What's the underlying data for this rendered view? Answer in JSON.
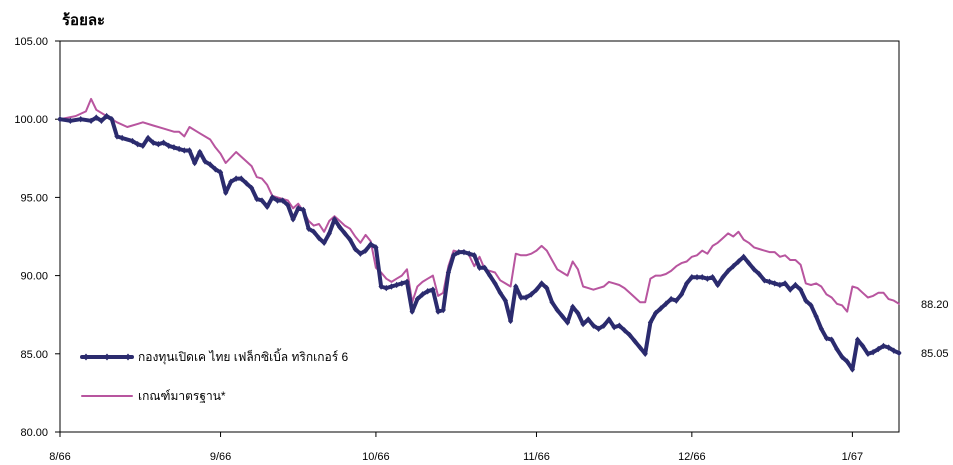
{
  "unit_label": "ร้อยละ",
  "chart_data": {
    "type": "line",
    "title": "",
    "xlabel": "",
    "ylabel": "ร้อยละ",
    "ylim": [
      80,
      105
    ],
    "yticks": [
      "105.00",
      "100.00",
      "95.00",
      "90.00",
      "85.00",
      "80.00"
    ],
    "ytick_values": [
      105,
      100,
      95,
      90,
      85,
      80
    ],
    "xticks": [
      "8/66",
      "9/66",
      "10/66",
      "11/66",
      "12/66",
      "1/67"
    ],
    "xtick_values": [
      0,
      31,
      61,
      92,
      122,
      153
    ],
    "x_range": [
      0,
      162
    ],
    "legend_position": "bottom-left",
    "series": [
      {
        "name": "กองทุนเปิดเค ไทย เฟล็กซิเบิ้ล ทริกเกอร์ 6",
        "color": "#2b2b6e",
        "end_label": "85.05",
        "points": [
          [
            0,
            100
          ],
          [
            2,
            99.9
          ],
          [
            4,
            100
          ],
          [
            6,
            99.9
          ],
          [
            7,
            100.1
          ],
          [
            8,
            99.9
          ],
          [
            9,
            100.2
          ],
          [
            10,
            100
          ],
          [
            11,
            98.9
          ],
          [
            12,
            98.8
          ],
          [
            14,
            98.6
          ],
          [
            15,
            98.4
          ],
          [
            16,
            98.3
          ],
          [
            17,
            98.8
          ],
          [
            18,
            98.5
          ],
          [
            19,
            98.4
          ],
          [
            20,
            98.5
          ],
          [
            21,
            98.3
          ],
          [
            22,
            98.2
          ],
          [
            23,
            98.1
          ],
          [
            24,
            98
          ],
          [
            25,
            98
          ],
          [
            26,
            97.2
          ],
          [
            27,
            97.9
          ],
          [
            28,
            97.3
          ],
          [
            29,
            97.1
          ],
          [
            30,
            96.8
          ],
          [
            31,
            96.6
          ],
          [
            32,
            95.3
          ],
          [
            33,
            96
          ],
          [
            34,
            96.2
          ],
          [
            35,
            96.2
          ],
          [
            36,
            95.9
          ],
          [
            37,
            95.6
          ],
          [
            38,
            94.9
          ],
          [
            39,
            94.8
          ],
          [
            40,
            94.4
          ],
          [
            41,
            95
          ],
          [
            42,
            94.8
          ],
          [
            43,
            94.8
          ],
          [
            44,
            94.5
          ],
          [
            45,
            93.6
          ],
          [
            46,
            94.3
          ],
          [
            47,
            94.2
          ],
          [
            48,
            93
          ],
          [
            49,
            92.8
          ],
          [
            50,
            92.4
          ],
          [
            51,
            92.1
          ],
          [
            52,
            92.7
          ],
          [
            53,
            93.6
          ],
          [
            54,
            93.1
          ],
          [
            55,
            92.7
          ],
          [
            56,
            92.3
          ],
          [
            57,
            91.7
          ],
          [
            58,
            91.4
          ],
          [
            59,
            91.6
          ],
          [
            60,
            92
          ],
          [
            61,
            91.8
          ],
          [
            62,
            89.3
          ],
          [
            63,
            89.2
          ],
          [
            64,
            89.3
          ],
          [
            65,
            89.4
          ],
          [
            66,
            89.5
          ],
          [
            67,
            89.6
          ],
          [
            68,
            87.7
          ],
          [
            69,
            88.5
          ],
          [
            70,
            88.8
          ],
          [
            71,
            89
          ],
          [
            72,
            89.1
          ],
          [
            73,
            87.7
          ],
          [
            74,
            87.8
          ],
          [
            75,
            90.2
          ],
          [
            76,
            91.3
          ],
          [
            77,
            91.5
          ],
          [
            78,
            91.5
          ],
          [
            79,
            91.4
          ],
          [
            80,
            91.3
          ],
          [
            81,
            90.5
          ],
          [
            82,
            90.5
          ],
          [
            83,
            90
          ],
          [
            84,
            89.5
          ],
          [
            85,
            88.9
          ],
          [
            86,
            88.4
          ],
          [
            87,
            87.1
          ],
          [
            88,
            89.3
          ],
          [
            89,
            88.6
          ],
          [
            90,
            88.6
          ],
          [
            91,
            88.8
          ],
          [
            92,
            89.1
          ],
          [
            93,
            89.5
          ],
          [
            94,
            89.2
          ],
          [
            95,
            88.3
          ],
          [
            96,
            87.8
          ],
          [
            97,
            87.4
          ],
          [
            98,
            87
          ],
          [
            99,
            88
          ],
          [
            100,
            87.6
          ],
          [
            101,
            86.9
          ],
          [
            102,
            87.2
          ],
          [
            103,
            86.8
          ],
          [
            104,
            86.6
          ],
          [
            105,
            86.8
          ],
          [
            106,
            87.2
          ],
          [
            107,
            86.7
          ],
          [
            108,
            86.8
          ],
          [
            109,
            86.5
          ],
          [
            110,
            86.2
          ],
          [
            111,
            85.8
          ],
          [
            112,
            85.4
          ],
          [
            113,
            85
          ],
          [
            114,
            87
          ],
          [
            115,
            87.6
          ],
          [
            116,
            87.9
          ],
          [
            117,
            88.2
          ],
          [
            118,
            88.5
          ],
          [
            119,
            88.4
          ],
          [
            120,
            88.8
          ],
          [
            121,
            89.5
          ],
          [
            122,
            89.9
          ],
          [
            123,
            89.9
          ],
          [
            124,
            89.9
          ],
          [
            125,
            89.8
          ],
          [
            126,
            89.9
          ],
          [
            127,
            89.4
          ],
          [
            128,
            89.9
          ],
          [
            129,
            90.3
          ],
          [
            130,
            90.6
          ],
          [
            131,
            90.9
          ],
          [
            132,
            91.2
          ],
          [
            133,
            90.8
          ],
          [
            134,
            90.4
          ],
          [
            135,
            90.1
          ],
          [
            136,
            89.7
          ],
          [
            137,
            89.6
          ],
          [
            138,
            89.5
          ],
          [
            139,
            89.4
          ],
          [
            140,
            89.5
          ],
          [
            141,
            89.1
          ],
          [
            142,
            89.4
          ],
          [
            143,
            89.1
          ],
          [
            144,
            88.4
          ],
          [
            145,
            88.1
          ],
          [
            146,
            87.4
          ],
          [
            147,
            86.6
          ],
          [
            148,
            86
          ],
          [
            149,
            85.9
          ],
          [
            150,
            85.3
          ],
          [
            151,
            84.8
          ],
          [
            152,
            84.5
          ],
          [
            153,
            84
          ],
          [
            154,
            85.9
          ],
          [
            155,
            85.5
          ],
          [
            156,
            85
          ],
          [
            157,
            85.1
          ],
          [
            158,
            85.3
          ],
          [
            159,
            85.5
          ],
          [
            160,
            85.4
          ],
          [
            161,
            85.2
          ],
          [
            162,
            85.05
          ]
        ]
      },
      {
        "name": "เกณฑ์มาตรฐาน*",
        "color": "#b8559f",
        "end_label": "88.20",
        "points": [
          [
            0,
            100
          ],
          [
            3,
            100.2
          ],
          [
            5,
            100.5
          ],
          [
            6,
            101.3
          ],
          [
            7,
            100.6
          ],
          [
            9,
            100.2
          ],
          [
            11,
            99.8
          ],
          [
            13,
            99.5
          ],
          [
            15,
            99.7
          ],
          [
            16,
            99.8
          ],
          [
            18,
            99.6
          ],
          [
            20,
            99.4
          ],
          [
            22,
            99.2
          ],
          [
            23,
            99.2
          ],
          [
            24,
            98.9
          ],
          [
            25,
            99.5
          ],
          [
            27,
            99.1
          ],
          [
            29,
            98.7
          ],
          [
            30,
            98.2
          ],
          [
            31,
            97.8
          ],
          [
            32,
            97.2
          ],
          [
            34,
            97.9
          ],
          [
            35,
            97.6
          ],
          [
            36,
            97.3
          ],
          [
            37,
            97
          ],
          [
            38,
            96.3
          ],
          [
            39,
            96.2
          ],
          [
            40,
            95.8
          ],
          [
            41,
            95.1
          ],
          [
            42,
            95
          ],
          [
            43,
            94.9
          ],
          [
            44,
            94.8
          ],
          [
            45,
            94.3
          ],
          [
            46,
            94.6
          ],
          [
            47,
            94.1
          ],
          [
            48,
            93.5
          ],
          [
            49,
            93.2
          ],
          [
            50,
            93.3
          ],
          [
            51,
            92.8
          ],
          [
            52,
            93.5
          ],
          [
            53,
            93.8
          ],
          [
            54,
            93.5
          ],
          [
            55,
            93.2
          ],
          [
            56,
            93
          ],
          [
            57,
            92.5
          ],
          [
            58,
            92.1
          ],
          [
            59,
            92.6
          ],
          [
            60,
            92.2
          ],
          [
            61,
            90.5
          ],
          [
            62,
            90.2
          ],
          [
            63,
            89.8
          ],
          [
            64,
            89.6
          ],
          [
            65,
            89.8
          ],
          [
            66,
            90
          ],
          [
            67,
            90.4
          ],
          [
            68,
            88.3
          ],
          [
            69,
            89.3
          ],
          [
            70,
            89.6
          ],
          [
            71,
            89.8
          ],
          [
            72,
            90
          ],
          [
            73,
            88.7
          ],
          [
            74,
            88.9
          ],
          [
            75,
            90.6
          ],
          [
            76,
            91.6
          ],
          [
            77,
            91.5
          ],
          [
            78,
            91.6
          ],
          [
            79,
            91.3
          ],
          [
            80,
            90.6
          ],
          [
            81,
            91.2
          ],
          [
            82,
            90.4
          ],
          [
            83,
            90.3
          ],
          [
            84,
            90.2
          ],
          [
            85,
            89.7
          ],
          [
            86,
            89.5
          ],
          [
            87,
            89.3
          ],
          [
            88,
            91.4
          ],
          [
            89,
            91.3
          ],
          [
            90,
            91.3
          ],
          [
            91,
            91.4
          ],
          [
            92,
            91.6
          ],
          [
            93,
            91.9
          ],
          [
            94,
            91.6
          ],
          [
            95,
            91
          ],
          [
            96,
            90.4
          ],
          [
            97,
            90.2
          ],
          [
            98,
            90
          ],
          [
            99,
            90.9
          ],
          [
            100,
            90.4
          ],
          [
            101,
            89.3
          ],
          [
            102,
            89.2
          ],
          [
            103,
            89.1
          ],
          [
            104,
            89.2
          ],
          [
            105,
            89.3
          ],
          [
            106,
            89.6
          ],
          [
            107,
            89.5
          ],
          [
            108,
            89.4
          ],
          [
            109,
            89.2
          ],
          [
            110,
            88.9
          ],
          [
            111,
            88.6
          ],
          [
            112,
            88.3
          ],
          [
            113,
            88.3
          ],
          [
            114,
            89.8
          ],
          [
            115,
            90
          ],
          [
            116,
            90
          ],
          [
            117,
            90.1
          ],
          [
            118,
            90.3
          ],
          [
            119,
            90.6
          ],
          [
            120,
            90.8
          ],
          [
            121,
            90.9
          ],
          [
            122,
            91.2
          ],
          [
            123,
            91.3
          ],
          [
            124,
            91.6
          ],
          [
            125,
            91.4
          ],
          [
            126,
            91.9
          ],
          [
            127,
            92.1
          ],
          [
            128,
            92.4
          ],
          [
            129,
            92.7
          ],
          [
            130,
            92.5
          ],
          [
            131,
            92.8
          ],
          [
            132,
            92.3
          ],
          [
            133,
            92.1
          ],
          [
            134,
            91.8
          ],
          [
            135,
            91.7
          ],
          [
            136,
            91.6
          ],
          [
            137,
            91.5
          ],
          [
            138,
            91.5
          ],
          [
            139,
            91.2
          ],
          [
            140,
            91.3
          ],
          [
            141,
            91
          ],
          [
            142,
            91
          ],
          [
            143,
            90.7
          ],
          [
            144,
            89.5
          ],
          [
            145,
            89.4
          ],
          [
            146,
            89.5
          ],
          [
            147,
            89.3
          ],
          [
            148,
            88.8
          ],
          [
            149,
            88.6
          ],
          [
            150,
            88.2
          ],
          [
            151,
            88.1
          ],
          [
            152,
            87.7
          ],
          [
            153,
            89.3
          ],
          [
            154,
            89.2
          ],
          [
            155,
            88.9
          ],
          [
            156,
            88.6
          ],
          [
            157,
            88.7
          ],
          [
            158,
            88.9
          ],
          [
            159,
            88.9
          ],
          [
            160,
            88.5
          ],
          [
            161,
            88.4
          ],
          [
            162,
            88.2
          ]
        ]
      }
    ]
  }
}
